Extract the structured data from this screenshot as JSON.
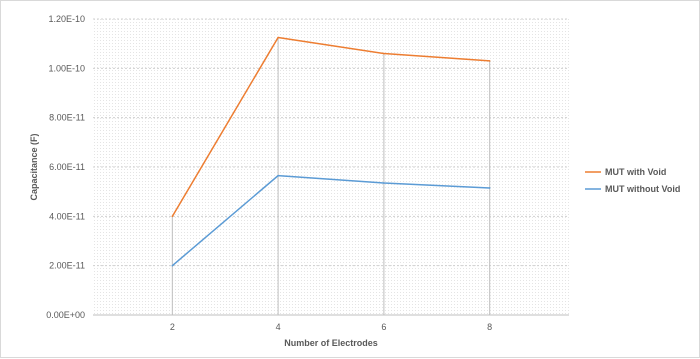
{
  "chart_data": {
    "type": "line",
    "title": "",
    "xlabel": "Number of Electrodes",
    "ylabel": "Capacitance (F)",
    "x": [
      2,
      4,
      6,
      8
    ],
    "x_tick_labels": [
      "2",
      "4",
      "6",
      "8"
    ],
    "ylim": [
      0,
      1.2e-10
    ],
    "y_ticks": [
      0,
      2e-11,
      4e-11,
      6e-11,
      8e-11,
      1e-10,
      1.2e-10
    ],
    "y_tick_labels": [
      "0.00E+00",
      "2.00E-11",
      "4.00E-11",
      "6.00E-11",
      "8.00E-11",
      "1.00E-10",
      "1.20E-10"
    ],
    "grid": "horizontal-dashed",
    "drop_lines": true,
    "legend_position": "right",
    "series": [
      {
        "name": "MUT with Void",
        "color": "#ed7d31",
        "values": [
          4e-11,
          1.125e-10,
          1.06e-10,
          1.03e-10
        ]
      },
      {
        "name": "MUT without Void",
        "color": "#5b9bd5",
        "values": [
          2e-11,
          5.65e-11,
          5.35e-11,
          5.15e-11
        ]
      }
    ]
  }
}
